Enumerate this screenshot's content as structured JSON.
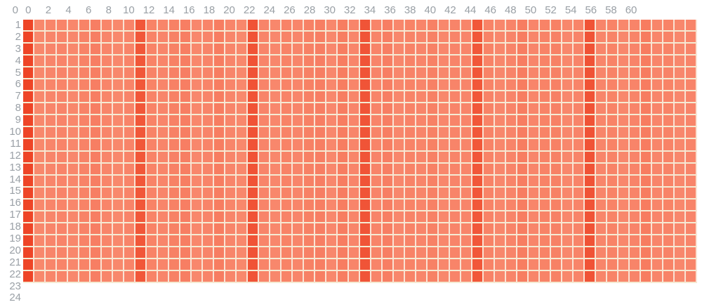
{
  "page": {
    "background": "#ffffff"
  },
  "chart_data": {
    "type": "heatmap",
    "x_labels": [
      "0",
      "2",
      "4",
      "6",
      "8",
      "10",
      "12",
      "14",
      "16",
      "18",
      "20",
      "22",
      "24",
      "26",
      "28",
      "30",
      "32",
      "34",
      "36",
      "38",
      "40",
      "42",
      "44",
      "46",
      "48",
      "50",
      "52",
      "54",
      "56",
      "58",
      "60"
    ],
    "x_tick_step": 2,
    "y_labels": [
      "0",
      "1",
      "2",
      "3",
      "4",
      "5",
      "6",
      "7",
      "8",
      "9",
      "10",
      "11",
      "12",
      "13",
      "14",
      "15",
      "16",
      "17",
      "18",
      "19",
      "20",
      "21",
      "22",
      "23",
      "24"
    ],
    "n_cols": 60,
    "n_rows": 22,
    "rows_uniform": true,
    "column_values": [
      1.0,
      0.05,
      0.08,
      0.1,
      0.06,
      0.12,
      0.18,
      0.08,
      0.05,
      0.1,
      0.75,
      0.12,
      0.08,
      0.15,
      0.18,
      0.06,
      0.1,
      0.2,
      0.08,
      0.05,
      0.8,
      0.1,
      0.06,
      0.12,
      0.08,
      0.15,
      0.18,
      0.06,
      0.2,
      0.08,
      0.78,
      0.1,
      0.18,
      0.06,
      0.12,
      0.08,
      0.15,
      0.06,
      0.1,
      0.08,
      0.75,
      0.12,
      0.06,
      0.1,
      0.2,
      0.08,
      0.12,
      0.15,
      0.06,
      0.1,
      0.8,
      0.08,
      0.12,
      0.06,
      0.1,
      0.22,
      0.08,
      0.12,
      0.06,
      0.1
    ],
    "value_range": [
      0,
      1
    ],
    "color_scale": {
      "low_value_color": "#f98b70",
      "high_value_color": "#ee4527"
    },
    "grid_lines": {
      "v_line_color": "#fae3d4",
      "h_line_color": "#f4ebd3",
      "on": true
    },
    "tick_label_color": "#9aa0a6",
    "legend": "none"
  }
}
